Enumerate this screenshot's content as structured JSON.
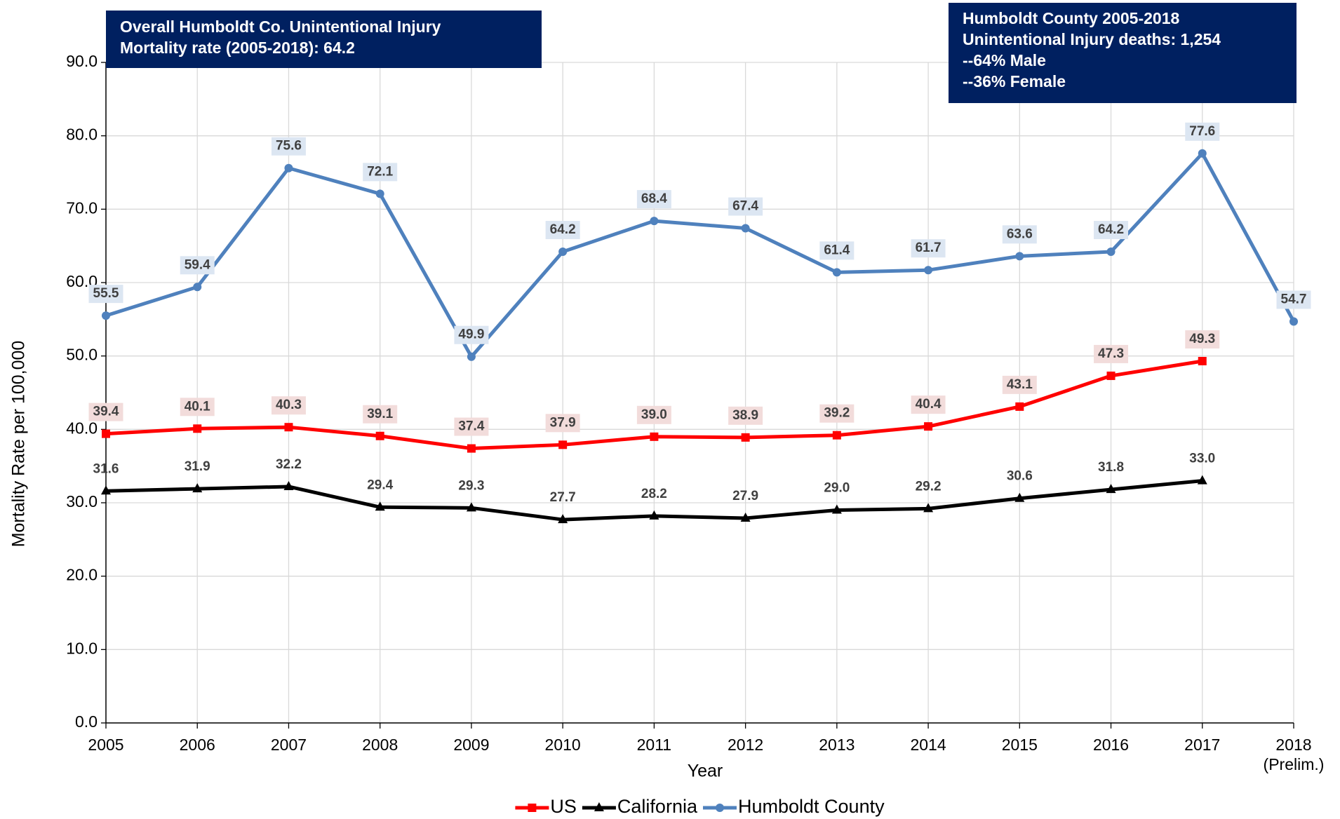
{
  "chart_data": {
    "type": "line",
    "x_label": "Year",
    "y_label": "Mortality Rate per 100,000",
    "categories": [
      "2005",
      "2006",
      "2007",
      "2008",
      "2009",
      "2010",
      "2011",
      "2012",
      "2013",
      "2014",
      "2015",
      "2016",
      "2017",
      "2018 (Prelim.)"
    ],
    "series": [
      {
        "name": "US",
        "color": "#ff0000",
        "marker": "square",
        "label_background": "#f2dcdb",
        "values": [
          39.4,
          40.1,
          40.3,
          39.1,
          37.4,
          37.9,
          39.0,
          38.9,
          39.2,
          40.4,
          43.1,
          47.3,
          49.3,
          null
        ],
        "value_labels": [
          "39.4",
          "40.1",
          "40.3",
          "39.1",
          "37.4",
          "37.9",
          "39.0",
          "38.9",
          "39.2",
          "40.4",
          "43.1",
          "47.3",
          "49.3",
          null
        ]
      },
      {
        "name": "California",
        "color": "#000000",
        "marker": "triangle",
        "values": [
          31.6,
          31.9,
          32.2,
          29.4,
          29.3,
          27.7,
          28.2,
          27.9,
          29.0,
          29.2,
          30.6,
          31.8,
          33.0,
          null
        ],
        "value_labels": [
          "31.6",
          "31.9",
          "32.2",
          "29.4",
          "29.3",
          "27.7",
          "28.2",
          "27.9",
          "29.0",
          "29.2",
          "30.6",
          "31.8",
          "33.0",
          null
        ]
      },
      {
        "name": "Humboldt County",
        "color": "#4f81bd",
        "marker": "circle",
        "label_background": "#dce6f2",
        "values": [
          55.5,
          59.4,
          75.6,
          72.1,
          49.9,
          64.2,
          68.4,
          67.4,
          61.4,
          61.7,
          63.6,
          64.2,
          77.6,
          54.7
        ],
        "value_labels": [
          "55.5",
          "59.4",
          "75.6",
          "72.1",
          "49.9",
          "64.2",
          "68.4",
          "67.4",
          "61.4",
          "61.7",
          "63.6",
          "64.2",
          "77.6",
          "54.7"
        ]
      }
    ],
    "ylim": [
      0,
      90
    ],
    "yticks": [
      {
        "value": 0,
        "label": "0.0"
      },
      {
        "value": 10,
        "label": "10.0"
      },
      {
        "value": 20,
        "label": "20.0"
      },
      {
        "value": 30,
        "label": "30.0"
      },
      {
        "value": 40,
        "label": "40.0"
      },
      {
        "value": 50,
        "label": "50.0"
      },
      {
        "value": 60,
        "label": "60.0"
      },
      {
        "value": 70,
        "label": "70.0"
      },
      {
        "value": 80,
        "label": "80.0"
      },
      {
        "value": 90,
        "label": "90.0"
      }
    ],
    "grid": true,
    "legend": "bottom",
    "annotations": [
      {
        "lines": [
          "Overall Humboldt Co. Unintentional Injury",
          "Mortality rate (2005-2018):  64.2"
        ]
      },
      {
        "lines": [
          "Humboldt County 2005-2018",
          "Unintentional Injury deaths:  1,254",
          "--64% Male",
          "--36% Female"
        ]
      }
    ]
  }
}
